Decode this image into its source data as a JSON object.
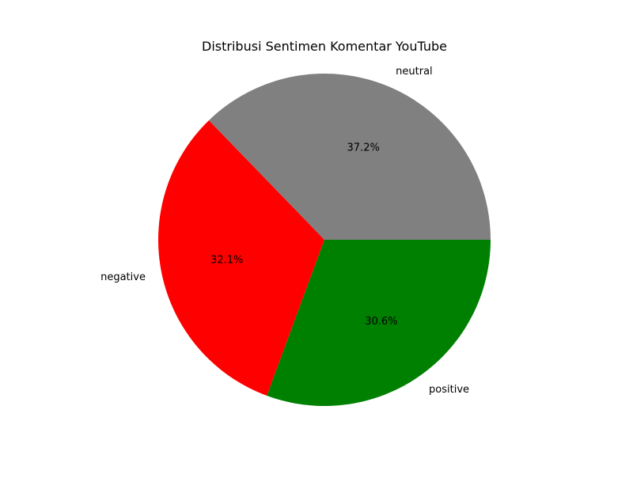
{
  "chart_data": {
    "type": "pie",
    "title": "Distribusi Sentimen Komentar YouTube",
    "labels": [
      "neutral",
      "negative",
      "positive"
    ],
    "values": [
      37.2,
      32.1,
      30.6
    ],
    "value_labels": [
      "37.2%",
      "32.1%",
      "30.6%"
    ],
    "colors": [
      "#808080",
      "#ff0000",
      "#008000"
    ],
    "start_angle_deg": 0,
    "direction": "counterclockwise",
    "legend": "none"
  }
}
